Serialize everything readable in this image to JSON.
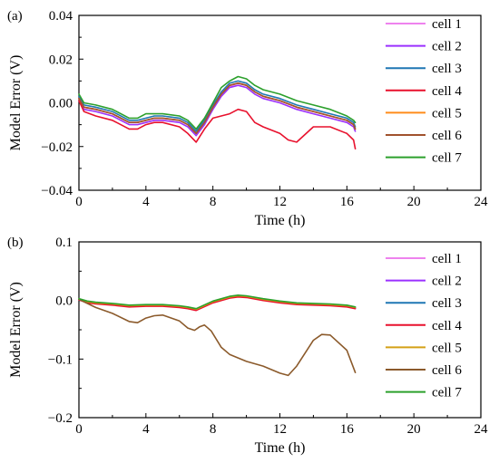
{
  "chart_data": [
    {
      "type": "line",
      "panel_label": "(a)",
      "title": "",
      "xlabel": "Time (h)",
      "ylabel": "Model Error (V)",
      "xlim": [
        0,
        24
      ],
      "ylim": [
        -0.04,
        0.04
      ],
      "xticks": [
        0,
        4,
        8,
        12,
        16,
        20,
        24
      ],
      "yticks": [
        -0.04,
        -0.02,
        0.0,
        0.02,
        0.04
      ],
      "xtick_labels": [
        "0",
        "4",
        "8",
        "12",
        "16",
        "20",
        "24"
      ],
      "ytick_labels": [
        "−0.04",
        "−0.02",
        "0.00",
        "0.02",
        "0.04"
      ],
      "grid": false,
      "legend_position": "right",
      "series": [
        {
          "name": "cell 1",
          "color": "#ee82ee",
          "x": [
            0,
            0.3,
            1,
            2,
            3,
            3.5,
            4,
            4.5,
            5,
            6,
            6.5,
            7,
            7.5,
            8,
            8.5,
            9,
            9.5,
            10,
            10.5,
            11,
            12,
            13,
            14,
            15,
            16,
            16.4,
            16.5
          ],
          "y": [
            0.002,
            -0.002,
            -0.003,
            -0.005,
            -0.009,
            -0.009,
            -0.008,
            -0.007,
            -0.007,
            -0.008,
            -0.01,
            -0.014,
            -0.009,
            -0.002,
            0.004,
            0.0075,
            0.009,
            0.008,
            0.005,
            0.003,
            0.001,
            -0.002,
            -0.004,
            -0.006,
            -0.008,
            -0.01,
            -0.012
          ]
        },
        {
          "name": "cell 2",
          "color": "#9b30ff",
          "x": [
            0,
            0.3,
            1,
            2,
            3,
            3.5,
            4,
            4.5,
            5,
            6,
            6.5,
            7,
            7.5,
            8,
            8.5,
            9,
            9.5,
            10,
            10.5,
            11,
            12,
            13,
            14,
            15,
            16,
            16.4,
            16.5
          ],
          "y": [
            0.001,
            -0.003,
            -0.004,
            -0.006,
            -0.01,
            -0.01,
            -0.009,
            -0.008,
            -0.008,
            -0.009,
            -0.011,
            -0.015,
            -0.01,
            -0.003,
            0.003,
            0.007,
            0.008,
            0.007,
            0.004,
            0.002,
            0.0,
            -0.003,
            -0.005,
            -0.007,
            -0.009,
            -0.011,
            -0.013
          ]
        },
        {
          "name": "cell 3",
          "color": "#1f77b4",
          "x": [
            0,
            0.3,
            1,
            2,
            3,
            3.5,
            4,
            4.5,
            5,
            6,
            6.5,
            7,
            7.5,
            8,
            8.5,
            9,
            9.5,
            10,
            10.5,
            11,
            12,
            13,
            14,
            15,
            16,
            16.4,
            16.5
          ],
          "y": [
            0.003,
            -0.001,
            -0.002,
            -0.004,
            -0.008,
            -0.008,
            -0.007,
            -0.006,
            -0.006,
            -0.007,
            -0.009,
            -0.013,
            -0.008,
            -0.001,
            0.005,
            0.009,
            0.01,
            0.009,
            0.006,
            0.004,
            0.002,
            -0.001,
            -0.003,
            -0.005,
            -0.007,
            -0.009,
            -0.011
          ]
        },
        {
          "name": "cell 4",
          "color": "#e8112d",
          "x": [
            0,
            0.3,
            1,
            2,
            3,
            3.5,
            4,
            4.5,
            5,
            6,
            6.5,
            7,
            7.5,
            8,
            8.5,
            9,
            9.5,
            10,
            10.5,
            11,
            12,
            12.5,
            13,
            14,
            15,
            16,
            16.4,
            16.5
          ],
          "y": [
            0.001,
            -0.004,
            -0.006,
            -0.008,
            -0.012,
            -0.012,
            -0.01,
            -0.009,
            -0.009,
            -0.011,
            -0.014,
            -0.018,
            -0.012,
            -0.007,
            -0.006,
            -0.005,
            -0.003,
            -0.004,
            -0.009,
            -0.011,
            -0.014,
            -0.017,
            -0.018,
            -0.011,
            -0.011,
            -0.014,
            -0.017,
            -0.021
          ]
        },
        {
          "name": "cell 5",
          "color": "#ff8c1a",
          "x": [
            0,
            0.3,
            1,
            2,
            3,
            3.5,
            4,
            4.5,
            5,
            6,
            6.5,
            7,
            7.5,
            8,
            8.5,
            9,
            9.5,
            10,
            10.5,
            11,
            12,
            13,
            14,
            15,
            16,
            16.4,
            16.5
          ],
          "y": [
            0.002,
            -0.002,
            -0.003,
            -0.005,
            -0.009,
            -0.009,
            -0.008,
            -0.007,
            -0.007,
            -0.008,
            -0.01,
            -0.014,
            -0.009,
            -0.002,
            0.004,
            0.008,
            0.009,
            0.008,
            0.005,
            0.003,
            0.001,
            -0.002,
            -0.004,
            -0.006,
            -0.008,
            -0.01,
            -0.012
          ]
        },
        {
          "name": "cell 6",
          "color": "#a0522d",
          "x": [
            0,
            0.3,
            1,
            2,
            3,
            3.5,
            4,
            4.5,
            5,
            6,
            6.5,
            7,
            7.5,
            8,
            8.5,
            9,
            9.5,
            10,
            10.5,
            11,
            12,
            13,
            14,
            15,
            16,
            16.4,
            16.5
          ],
          "y": [
            0.002,
            -0.002,
            -0.003,
            -0.005,
            -0.009,
            -0.009,
            -0.008,
            -0.007,
            -0.007,
            -0.008,
            -0.01,
            -0.014,
            -0.009,
            -0.002,
            0.004,
            0.008,
            0.009,
            0.008,
            0.005,
            0.003,
            0.001,
            -0.002,
            -0.004,
            -0.006,
            -0.008,
            -0.01,
            -0.012
          ]
        },
        {
          "name": "cell 7",
          "color": "#2ca02c",
          "x": [
            0,
            0.3,
            1,
            2,
            3,
            3.5,
            4,
            4.5,
            5,
            6,
            6.5,
            7,
            7.5,
            8,
            8.5,
            9,
            9.5,
            10,
            10.5,
            11,
            12,
            13,
            14,
            15,
            16,
            16.4,
            16.5
          ],
          "y": [
            0.004,
            0.0,
            -0.001,
            -0.003,
            -0.007,
            -0.007,
            -0.005,
            -0.005,
            -0.005,
            -0.006,
            -0.008,
            -0.012,
            -0.007,
            0.0,
            0.007,
            0.01,
            0.012,
            0.011,
            0.008,
            0.006,
            0.004,
            0.001,
            -0.001,
            -0.003,
            -0.006,
            -0.008,
            -0.009
          ]
        }
      ]
    },
    {
      "type": "line",
      "panel_label": "(b)",
      "title": "",
      "xlabel": "Time (h)",
      "ylabel": "Model Error (V)",
      "xlim": [
        0,
        24
      ],
      "ylim": [
        -0.2,
        0.1
      ],
      "xticks": [
        0,
        4,
        8,
        12,
        16,
        20,
        24
      ],
      "yticks": [
        -0.2,
        -0.1,
        0.0,
        0.1
      ],
      "xtick_labels": [
        "0",
        "4",
        "8",
        "12",
        "16",
        "20",
        "24"
      ],
      "ytick_labels": [
        "−0.2",
        "−0.1",
        "0.0",
        "0.1"
      ],
      "grid": false,
      "legend_position": "right",
      "series": [
        {
          "name": "cell 1",
          "color": "#ee82ee",
          "x": [
            0,
            0.5,
            1,
            2,
            3,
            4,
            5,
            6,
            6.5,
            7,
            8,
            9,
            9.5,
            10,
            11,
            12,
            13,
            14,
            15,
            16,
            16.5
          ],
          "y": [
            0.002,
            -0.002,
            -0.004,
            -0.006,
            -0.009,
            -0.008,
            -0.008,
            -0.01,
            -0.012,
            -0.015,
            -0.002,
            0.006,
            0.008,
            0.007,
            0.002,
            -0.002,
            -0.005,
            -0.006,
            -0.007,
            -0.009,
            -0.012
          ]
        },
        {
          "name": "cell 2",
          "color": "#9b30ff",
          "x": [
            0,
            0.5,
            1,
            2,
            3,
            4,
            5,
            6,
            6.5,
            7,
            8,
            9,
            9.5,
            10,
            11,
            12,
            13,
            14,
            15,
            16,
            16.5
          ],
          "y": [
            0.001,
            -0.003,
            -0.005,
            -0.007,
            -0.01,
            -0.009,
            -0.009,
            -0.011,
            -0.013,
            -0.016,
            -0.003,
            0.005,
            0.007,
            0.006,
            0.001,
            -0.003,
            -0.006,
            -0.007,
            -0.008,
            -0.01,
            -0.013
          ]
        },
        {
          "name": "cell 3",
          "color": "#1f77b4",
          "x": [
            0,
            0.5,
            1,
            2,
            3,
            4,
            5,
            6,
            6.5,
            7,
            8,
            9,
            9.5,
            10,
            11,
            12,
            13,
            14,
            15,
            16,
            16.5
          ],
          "y": [
            0.002,
            -0.002,
            -0.004,
            -0.006,
            -0.009,
            -0.008,
            -0.008,
            -0.01,
            -0.012,
            -0.015,
            -0.002,
            0.006,
            0.008,
            0.007,
            0.002,
            -0.002,
            -0.005,
            -0.006,
            -0.007,
            -0.009,
            -0.012
          ]
        },
        {
          "name": "cell 4",
          "color": "#e8112d",
          "x": [
            0,
            0.5,
            1,
            2,
            3,
            4,
            5,
            6,
            6.5,
            7,
            8,
            9,
            9.5,
            10,
            11,
            12,
            13,
            14,
            15,
            16,
            16.5
          ],
          "y": [
            0.001,
            -0.004,
            -0.006,
            -0.008,
            -0.011,
            -0.01,
            -0.01,
            -0.012,
            -0.014,
            -0.017,
            -0.004,
            0.004,
            0.006,
            0.005,
            0.0,
            -0.004,
            -0.007,
            -0.008,
            -0.009,
            -0.011,
            -0.014
          ]
        },
        {
          "name": "cell 5",
          "color": "#d4a017",
          "x": [
            0,
            0.5,
            1,
            2,
            3,
            4,
            5,
            6,
            6.5,
            7,
            8,
            9,
            9.5,
            10,
            11,
            12,
            13,
            14,
            15,
            16,
            16.5
          ],
          "y": [
            0.002,
            -0.002,
            -0.004,
            -0.006,
            -0.009,
            -0.008,
            -0.008,
            -0.01,
            -0.012,
            -0.015,
            -0.002,
            0.006,
            0.008,
            0.007,
            0.002,
            -0.002,
            -0.005,
            -0.006,
            -0.007,
            -0.009,
            -0.012
          ]
        },
        {
          "name": "cell 6",
          "color": "#8b5a2b",
          "x": [
            0,
            0.5,
            1,
            2,
            3,
            3.5,
            4,
            4.5,
            5,
            6,
            6.5,
            6.9,
            7.2,
            7.5,
            7.9,
            8.5,
            9,
            10,
            11,
            12,
            12.5,
            13,
            14,
            14.5,
            15,
            16,
            16.5
          ],
          "y": [
            0.002,
            -0.005,
            -0.012,
            -0.022,
            -0.036,
            -0.038,
            -0.03,
            -0.026,
            -0.025,
            -0.035,
            -0.047,
            -0.051,
            -0.045,
            -0.042,
            -0.052,
            -0.08,
            -0.092,
            -0.104,
            -0.112,
            -0.124,
            -0.128,
            -0.112,
            -0.068,
            -0.058,
            -0.059,
            -0.085,
            -0.123
          ]
        },
        {
          "name": "cell 7",
          "color": "#2ca02c",
          "x": [
            0,
            0.5,
            1,
            2,
            3,
            4,
            5,
            6,
            6.5,
            7,
            8,
            9,
            9.5,
            10,
            11,
            12,
            13,
            14,
            15,
            16,
            16.5
          ],
          "y": [
            0.003,
            -0.001,
            -0.003,
            -0.005,
            -0.008,
            -0.007,
            -0.007,
            -0.009,
            -0.011,
            -0.014,
            -0.001,
            0.007,
            0.009,
            0.008,
            0.003,
            -0.001,
            -0.004,
            -0.005,
            -0.006,
            -0.008,
            -0.011
          ]
        }
      ]
    }
  ]
}
